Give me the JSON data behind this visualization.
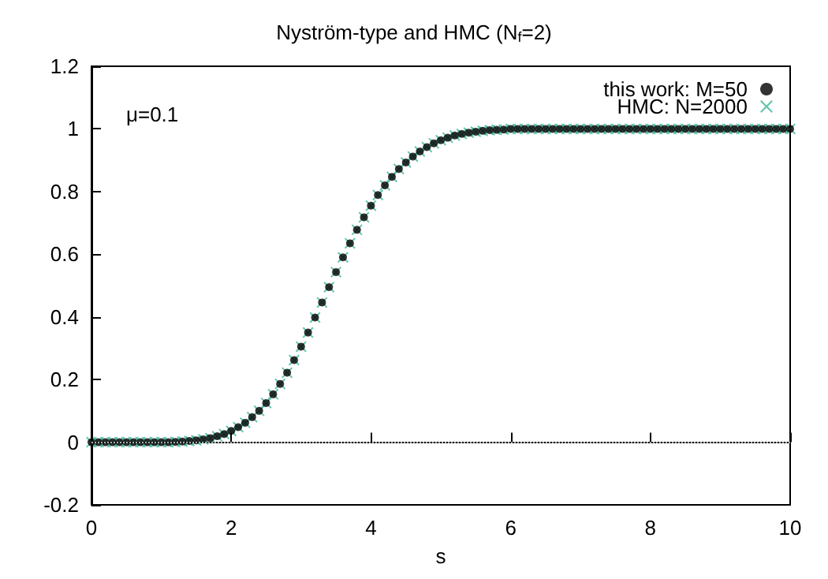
{
  "chart_data": {
    "type": "scatter",
    "title": "Nyström-type and HMC (N$_{f}$=2)",
    "xlabel": "s",
    "annotations": [
      "μ=0.1"
    ],
    "x": [
      0,
      0.1,
      0.2,
      0.3,
      0.4,
      0.5,
      0.6,
      0.7,
      0.8,
      0.9,
      1,
      1.1,
      1.2,
      1.3,
      1.4,
      1.5,
      1.6,
      1.7,
      1.8,
      1.9,
      2,
      2.1,
      2.2,
      2.3,
      2.4,
      2.5,
      2.6,
      2.7,
      2.8,
      2.9,
      3,
      3.1,
      3.2,
      3.3,
      3.4,
      3.5,
      3.6,
      3.7,
      3.8,
      3.9,
      4,
      4.1,
      4.2,
      4.3,
      4.4,
      4.5,
      4.6,
      4.7,
      4.8,
      4.9,
      5,
      5.1,
      5.2,
      5.3,
      5.4,
      5.5,
      5.6,
      5.7,
      5.8,
      5.9,
      6,
      6.1,
      6.2,
      6.3,
      6.4,
      6.5,
      6.6,
      6.7,
      6.8,
      6.9,
      7,
      7.1,
      7.2,
      7.3,
      7.4,
      7.5,
      7.6,
      7.7,
      7.8,
      7.9,
      8,
      8.1,
      8.2,
      8.3,
      8.4,
      8.5,
      8.6,
      8.7,
      8.8,
      8.9,
      9,
      9.1,
      9.2,
      9.3,
      9.4,
      9.5,
      9.6,
      9.7,
      9.8,
      9.9,
      10
    ],
    "series": [
      {
        "name": "this work: M=50",
        "color": "#000000",
        "marker": "circle",
        "values": [
          0,
          0,
          0,
          0,
          0,
          0,
          0,
          0,
          0,
          0,
          0,
          0,
          0.001,
          0.002,
          0.004,
          0.006,
          0.009,
          0.013,
          0.019,
          0.026,
          0.036,
          0.048,
          0.062,
          0.08,
          0.1,
          0.125,
          0.153,
          0.186,
          0.222,
          0.262,
          0.305,
          0.35,
          0.398,
          0.446,
          0.495,
          0.543,
          0.59,
          0.635,
          0.678,
          0.718,
          0.755,
          0.789,
          0.82,
          0.847,
          0.872,
          0.893,
          0.912,
          0.928,
          0.942,
          0.954,
          0.964,
          0.972,
          0.979,
          0.984,
          0.988,
          0.991,
          0.994,
          0.996,
          0.997,
          0.998,
          1,
          1,
          1,
          1,
          1,
          1,
          1,
          1,
          1,
          1,
          1,
          1,
          1,
          1,
          1,
          1,
          1,
          1,
          1,
          1,
          1,
          1,
          1,
          1,
          1,
          1,
          1,
          1,
          1,
          1,
          1,
          1,
          1,
          1,
          1,
          1,
          1,
          1,
          1,
          1,
          1
        ]
      },
      {
        "name": "HMC: N=2000",
        "color": "#3cb89a",
        "marker": "cross",
        "values": [
          0,
          0,
          0,
          0,
          0,
          0,
          0,
          0,
          0,
          0,
          0,
          0,
          0.001,
          0.002,
          0.004,
          0.006,
          0.009,
          0.013,
          0.019,
          0.026,
          0.036,
          0.048,
          0.062,
          0.08,
          0.1,
          0.125,
          0.153,
          0.186,
          0.222,
          0.262,
          0.305,
          0.35,
          0.398,
          0.446,
          0.495,
          0.543,
          0.59,
          0.635,
          0.678,
          0.718,
          0.755,
          0.789,
          0.82,
          0.847,
          0.872,
          0.893,
          0.912,
          0.928,
          0.942,
          0.954,
          0.964,
          0.972,
          0.979,
          0.984,
          0.988,
          0.991,
          0.994,
          0.996,
          0.997,
          0.998,
          1,
          1,
          1,
          1,
          1,
          1,
          1,
          1,
          1,
          1,
          1,
          1,
          1,
          1,
          1,
          1,
          1,
          1,
          1,
          1,
          1,
          1,
          1,
          1,
          1,
          1,
          1,
          1,
          1,
          1,
          1,
          1,
          1,
          1,
          1,
          1,
          1,
          1,
          1,
          1,
          1
        ]
      }
    ],
    "xlim": [
      0,
      10
    ],
    "xticks": [
      0,
      2,
      4,
      6,
      8,
      10
    ],
    "ylim": [
      -0.2,
      1.2
    ],
    "yticks": [
      -0.2,
      0,
      0.2,
      0.4,
      0.6,
      0.8,
      1,
      1.2
    ],
    "ref_lines": [
      {
        "axis": "y",
        "value": 0,
        "color": "#aaaaaa",
        "line_style": "dotted"
      }
    ],
    "grid": false,
    "legend": "top right"
  }
}
